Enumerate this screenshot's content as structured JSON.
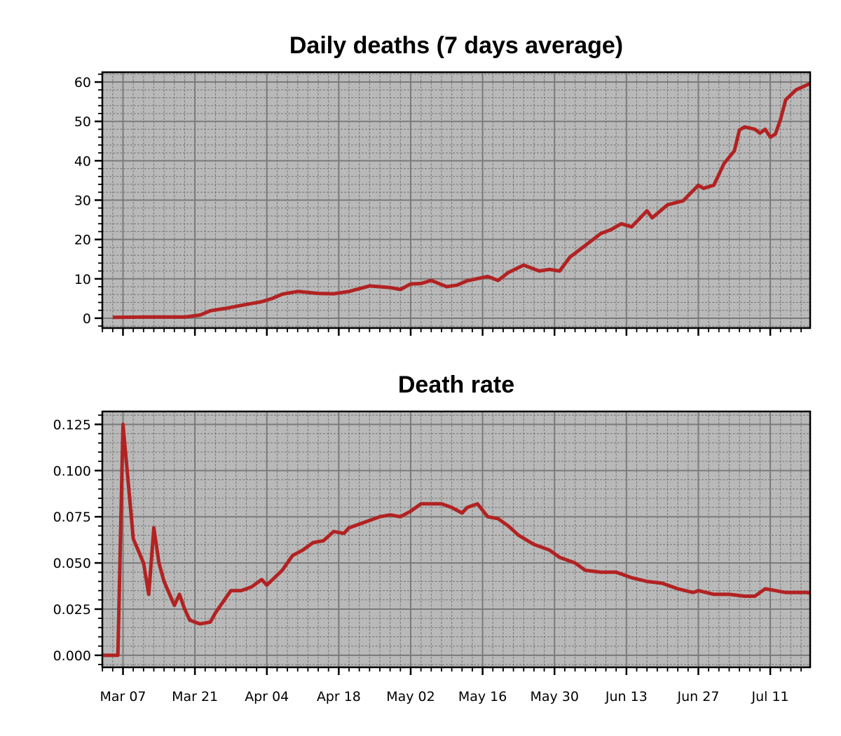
{
  "chart_data": [
    {
      "type": "line",
      "title": "Daily deaths (7 days average)",
      "xlabel": "",
      "ylabel": "",
      "x_start": "2020-03-04",
      "x_end": "2020-07-21",
      "ylim": [
        -2.5,
        62.5
      ],
      "yticks": [
        0,
        10,
        20,
        30,
        40,
        50,
        60
      ],
      "ytick_labels": [
        "0",
        "10",
        "20",
        "30",
        "40",
        "50",
        "60"
      ],
      "grid": true,
      "line_color": "#b22222",
      "background_color": "#b9b9b9",
      "series": [
        {
          "points": [
            {
              "x": "2020-03-05",
              "y": 0.2
            },
            {
              "x": "2020-03-12",
              "y": 0.3
            },
            {
              "x": "2020-03-19",
              "y": 0.3
            },
            {
              "x": "2020-03-22",
              "y": 0.8
            },
            {
              "x": "2020-03-24",
              "y": 1.9
            },
            {
              "x": "2020-03-27",
              "y": 2.5
            },
            {
              "x": "2020-03-31",
              "y": 3.5
            },
            {
              "x": "2020-04-03",
              "y": 4.2
            },
            {
              "x": "2020-04-05",
              "y": 5.0
            },
            {
              "x": "2020-04-07",
              "y": 6.1
            },
            {
              "x": "2020-04-10",
              "y": 6.8
            },
            {
              "x": "2020-04-14",
              "y": 6.3
            },
            {
              "x": "2020-04-17",
              "y": 6.2
            },
            {
              "x": "2020-04-20",
              "y": 6.8
            },
            {
              "x": "2020-04-24",
              "y": 8.2
            },
            {
              "x": "2020-04-28",
              "y": 7.8
            },
            {
              "x": "2020-04-30",
              "y": 7.3
            },
            {
              "x": "2020-05-02",
              "y": 8.7
            },
            {
              "x": "2020-05-04",
              "y": 8.8
            },
            {
              "x": "2020-05-06",
              "y": 9.6
            },
            {
              "x": "2020-05-09",
              "y": 8.0
            },
            {
              "x": "2020-05-11",
              "y": 8.4
            },
            {
              "x": "2020-05-13",
              "y": 9.5
            },
            {
              "x": "2020-05-17",
              "y": 10.6
            },
            {
              "x": "2020-05-19",
              "y": 9.6
            },
            {
              "x": "2020-05-21",
              "y": 11.6
            },
            {
              "x": "2020-05-24",
              "y": 13.5
            },
            {
              "x": "2020-05-27",
              "y": 12.0
            },
            {
              "x": "2020-05-29",
              "y": 12.4
            },
            {
              "x": "2020-05-31",
              "y": 12.0
            },
            {
              "x": "2020-06-02",
              "y": 15.5
            },
            {
              "x": "2020-06-05",
              "y": 18.5
            },
            {
              "x": "2020-06-08",
              "y": 21.5
            },
            {
              "x": "2020-06-10",
              "y": 22.5
            },
            {
              "x": "2020-06-12",
              "y": 24.0
            },
            {
              "x": "2020-06-14",
              "y": 23.2
            },
            {
              "x": "2020-06-17",
              "y": 27.3
            },
            {
              "x": "2020-06-18",
              "y": 25.5
            },
            {
              "x": "2020-06-21",
              "y": 28.8
            },
            {
              "x": "2020-06-24",
              "y": 29.8
            },
            {
              "x": "2020-06-27",
              "y": 33.8
            },
            {
              "x": "2020-06-28",
              "y": 33.0
            },
            {
              "x": "2020-06-30",
              "y": 33.8
            },
            {
              "x": "2020-07-02",
              "y": 39.3
            },
            {
              "x": "2020-07-04",
              "y": 42.5
            },
            {
              "x": "2020-07-05",
              "y": 47.8
            },
            {
              "x": "2020-07-06",
              "y": 48.6
            },
            {
              "x": "2020-07-08",
              "y": 48.0
            },
            {
              "x": "2020-07-09",
              "y": 47.0
            },
            {
              "x": "2020-07-10",
              "y": 48.0
            },
            {
              "x": "2020-07-11",
              "y": 46.0
            },
            {
              "x": "2020-07-12",
              "y": 46.8
            },
            {
              "x": "2020-07-13",
              "y": 50.5
            },
            {
              "x": "2020-07-14",
              "y": 55.5
            },
            {
              "x": "2020-07-16",
              "y": 58.0
            },
            {
              "x": "2020-07-19",
              "y": 59.8
            }
          ]
        }
      ]
    },
    {
      "type": "line",
      "title": "Death rate",
      "xlabel": "",
      "ylabel": "",
      "x_start": "2020-03-03",
      "x_end": "2020-07-21",
      "ylim": [
        -0.0065,
        0.132
      ],
      "yticks": [
        0,
        0.025,
        0.05,
        0.075,
        0.1,
        0.125
      ],
      "ytick_labels": [
        "0.000",
        "0.025",
        "0.050",
        "0.075",
        "0.100",
        "0.125"
      ],
      "xticks": [
        "2020-03-07",
        "2020-03-21",
        "2020-04-04",
        "2020-04-18",
        "2020-05-02",
        "2020-05-16",
        "2020-05-30",
        "2020-06-13",
        "2020-06-27",
        "2020-07-11"
      ],
      "xtick_labels": [
        "Mar 07",
        "Mar 21",
        "Apr 04",
        "Apr 18",
        "May 02",
        "May 16",
        "May 30",
        "Jun 13",
        "Jun 27",
        "Jul 11"
      ],
      "grid": true,
      "line_color": "#b22222",
      "background_color": "#b9b9b9",
      "series": [
        {
          "points": [
            {
              "x": "2020-03-03",
              "y": 0.0
            },
            {
              "x": "2020-03-06",
              "y": 0.0
            },
            {
              "x": "2020-03-07",
              "y": 0.125
            },
            {
              "x": "2020-03-09",
              "y": 0.063
            },
            {
              "x": "2020-03-11",
              "y": 0.05
            },
            {
              "x": "2020-03-12",
              "y": 0.033
            },
            {
              "x": "2020-03-13",
              "y": 0.069
            },
            {
              "x": "2020-03-14",
              "y": 0.05
            },
            {
              "x": "2020-03-15",
              "y": 0.04
            },
            {
              "x": "2020-03-17",
              "y": 0.027
            },
            {
              "x": "2020-03-18",
              "y": 0.033
            },
            {
              "x": "2020-03-19",
              "y": 0.025
            },
            {
              "x": "2020-03-20",
              "y": 0.019
            },
            {
              "x": "2020-03-22",
              "y": 0.017
            },
            {
              "x": "2020-03-24",
              "y": 0.018
            },
            {
              "x": "2020-03-25",
              "y": 0.023
            },
            {
              "x": "2020-03-28",
              "y": 0.035
            },
            {
              "x": "2020-03-30",
              "y": 0.035
            },
            {
              "x": "2020-04-01",
              "y": 0.037
            },
            {
              "x": "2020-04-03",
              "y": 0.041
            },
            {
              "x": "2020-04-04",
              "y": 0.038
            },
            {
              "x": "2020-04-07",
              "y": 0.046
            },
            {
              "x": "2020-04-09",
              "y": 0.054
            },
            {
              "x": "2020-04-11",
              "y": 0.057
            },
            {
              "x": "2020-04-13",
              "y": 0.061
            },
            {
              "x": "2020-04-15",
              "y": 0.062
            },
            {
              "x": "2020-04-17",
              "y": 0.067
            },
            {
              "x": "2020-04-19",
              "y": 0.066
            },
            {
              "x": "2020-04-20",
              "y": 0.069
            },
            {
              "x": "2020-04-23",
              "y": 0.072
            },
            {
              "x": "2020-04-26",
              "y": 0.075
            },
            {
              "x": "2020-04-28",
              "y": 0.076
            },
            {
              "x": "2020-04-30",
              "y": 0.075
            },
            {
              "x": "2020-05-02",
              "y": 0.078
            },
            {
              "x": "2020-05-04",
              "y": 0.082
            },
            {
              "x": "2020-05-08",
              "y": 0.082
            },
            {
              "x": "2020-05-10",
              "y": 0.08
            },
            {
              "x": "2020-05-12",
              "y": 0.077
            },
            {
              "x": "2020-05-13",
              "y": 0.08
            },
            {
              "x": "2020-05-15",
              "y": 0.082
            },
            {
              "x": "2020-05-17",
              "y": 0.075
            },
            {
              "x": "2020-05-19",
              "y": 0.074
            },
            {
              "x": "2020-05-21",
              "y": 0.07
            },
            {
              "x": "2020-05-23",
              "y": 0.065
            },
            {
              "x": "2020-05-26",
              "y": 0.06
            },
            {
              "x": "2020-05-29",
              "y": 0.057
            },
            {
              "x": "2020-05-31",
              "y": 0.053
            },
            {
              "x": "2020-06-03",
              "y": 0.05
            },
            {
              "x": "2020-06-05",
              "y": 0.046
            },
            {
              "x": "2020-06-08",
              "y": 0.045
            },
            {
              "x": "2020-06-11",
              "y": 0.045
            },
            {
              "x": "2020-06-14",
              "y": 0.042
            },
            {
              "x": "2020-06-17",
              "y": 0.04
            },
            {
              "x": "2020-06-20",
              "y": 0.039
            },
            {
              "x": "2020-06-23",
              "y": 0.036
            },
            {
              "x": "2020-06-26",
              "y": 0.034
            },
            {
              "x": "2020-06-27",
              "y": 0.035
            },
            {
              "x": "2020-06-30",
              "y": 0.033
            },
            {
              "x": "2020-07-03",
              "y": 0.033
            },
            {
              "x": "2020-07-06",
              "y": 0.032
            },
            {
              "x": "2020-07-08",
              "y": 0.032
            },
            {
              "x": "2020-07-10",
              "y": 0.036
            },
            {
              "x": "2020-07-12",
              "y": 0.035
            },
            {
              "x": "2020-07-14",
              "y": 0.034
            },
            {
              "x": "2020-07-18",
              "y": 0.034
            },
            {
              "x": "2020-07-21",
              "y": 0.033
            }
          ]
        }
      ]
    }
  ]
}
